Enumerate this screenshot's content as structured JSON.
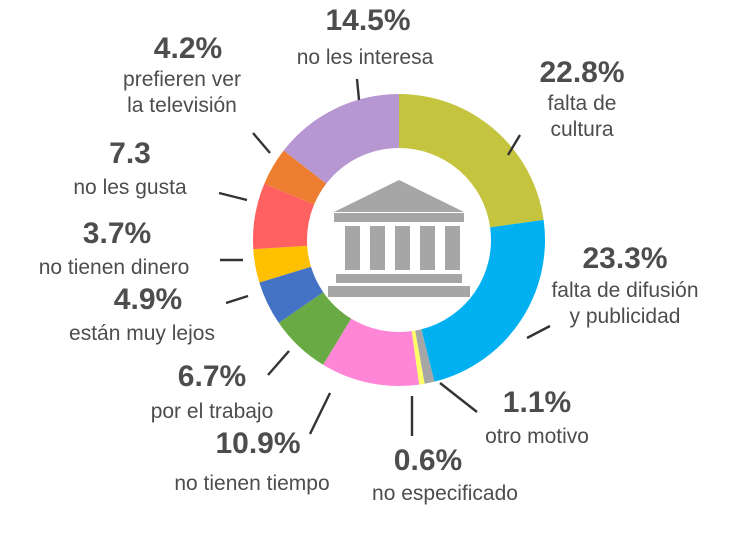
{
  "chart_data": {
    "type": "pie",
    "variant": "donut",
    "direction": "clockwise",
    "start": "top",
    "legend": "none",
    "center_icon": "museum-icon",
    "slices": [
      {
        "value": 22.8,
        "pct_label": "22.8%",
        "lines": [
          "falta de",
          "cultura"
        ],
        "color": "#c4c43f"
      },
      {
        "value": 23.3,
        "pct_label": "23.3%",
        "lines": [
          "falta de difusión",
          "y publicidad"
        ],
        "color": "#00b0f0"
      },
      {
        "value": 1.1,
        "pct_label": "1.1%",
        "lines": [
          "otro motivo"
        ],
        "color": "#a6a6a6"
      },
      {
        "value": 0.6,
        "pct_label": "0.6%",
        "lines": [
          "no especificado"
        ],
        "color": "#ffff66"
      },
      {
        "value": 10.9,
        "pct_label": "10.9%",
        "lines": [
          "no tienen tiempo"
        ],
        "color": "#ff85d6"
      },
      {
        "value": 6.7,
        "pct_label": "6.7%",
        "lines": [
          "por el trabajo"
        ],
        "color": "#6aaa45"
      },
      {
        "value": 4.9,
        "pct_label": "4.9%",
        "lines": [
          "están muy lejos"
        ],
        "color": "#4472c4"
      },
      {
        "value": 3.7,
        "pct_label": "3.7%",
        "lines": [
          "no tienen dinero"
        ],
        "color": "#ffc000"
      },
      {
        "value": 7.3,
        "pct_label": "7.3",
        "lines": [
          "no les gusta"
        ],
        "color": "#ff6161"
      },
      {
        "value": 4.2,
        "pct_label": "4.2%",
        "lines": [
          "prefieren ver",
          "la televisión"
        ],
        "color": "#ed7d31"
      },
      {
        "value": 14.5,
        "pct_label": "14.5%",
        "lines": [
          "no les interesa"
        ],
        "color": "#b697d1"
      }
    ]
  }
}
